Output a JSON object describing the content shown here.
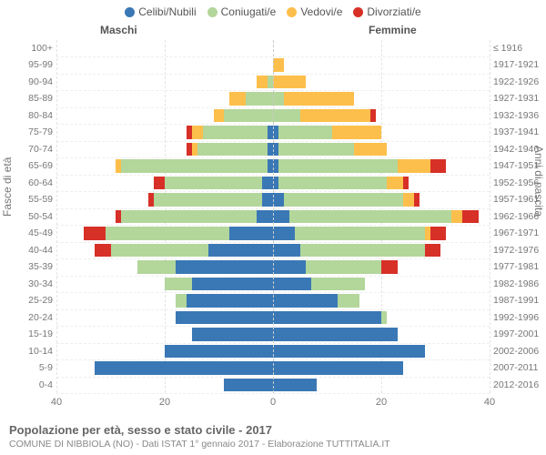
{
  "legend": {
    "items": [
      {
        "label": "Celibi/Nubili",
        "color": "#3a78b5"
      },
      {
        "label": "Coniugati/e",
        "color": "#b3d69b"
      },
      {
        "label": "Vedovi/e",
        "color": "#fdbf4b"
      },
      {
        "label": "Divorziati/e",
        "color": "#d73027"
      }
    ]
  },
  "gender": {
    "left": "Maschi",
    "right": "Femmine"
  },
  "axis": {
    "left_title": "Fasce di età",
    "right_title": "Anni di nascita",
    "xmax": 40,
    "xticks": [
      40,
      20,
      0,
      20,
      40
    ]
  },
  "footer": {
    "title": "Popolazione per età, sesso e stato civile - 2017",
    "subtitle": "COMUNE DI NIBBIOLA (NO) - Dati ISTAT 1° gennaio 2017 - Elaborazione TUTTITALIA.IT"
  },
  "colors": {
    "celibi": "#3a78b5",
    "coniugati": "#b3d69b",
    "vedovi": "#fdbf4b",
    "divorziati": "#d73027",
    "grid": "#e5e5e5",
    "center": "#cccccc",
    "bg": "#ffffff"
  },
  "rows": [
    {
      "age": "0-4",
      "birth": "2012-2016",
      "m": {
        "c": 9,
        "s": 0,
        "v": 0,
        "d": 0
      },
      "f": {
        "c": 8,
        "s": 0,
        "v": 0,
        "d": 0
      }
    },
    {
      "age": "5-9",
      "birth": "2007-2011",
      "m": {
        "c": 33,
        "s": 0,
        "v": 0,
        "d": 0
      },
      "f": {
        "c": 24,
        "s": 0,
        "v": 0,
        "d": 0
      }
    },
    {
      "age": "10-14",
      "birth": "2002-2006",
      "m": {
        "c": 20,
        "s": 0,
        "v": 0,
        "d": 0
      },
      "f": {
        "c": 28,
        "s": 0,
        "v": 0,
        "d": 0
      }
    },
    {
      "age": "15-19",
      "birth": "1997-2001",
      "m": {
        "c": 15,
        "s": 0,
        "v": 0,
        "d": 0
      },
      "f": {
        "c": 23,
        "s": 0,
        "v": 0,
        "d": 0
      }
    },
    {
      "age": "20-24",
      "birth": "1992-1996",
      "m": {
        "c": 18,
        "s": 0,
        "v": 0,
        "d": 0
      },
      "f": {
        "c": 20,
        "s": 1,
        "v": 0,
        "d": 0
      }
    },
    {
      "age": "25-29",
      "birth": "1987-1991",
      "m": {
        "c": 16,
        "s": 2,
        "v": 0,
        "d": 0
      },
      "f": {
        "c": 12,
        "s": 4,
        "v": 0,
        "d": 0
      }
    },
    {
      "age": "30-34",
      "birth": "1982-1986",
      "m": {
        "c": 15,
        "s": 5,
        "v": 0,
        "d": 0
      },
      "f": {
        "c": 7,
        "s": 10,
        "v": 0,
        "d": 0
      }
    },
    {
      "age": "35-39",
      "birth": "1977-1981",
      "m": {
        "c": 18,
        "s": 7,
        "v": 0,
        "d": 0
      },
      "f": {
        "c": 6,
        "s": 14,
        "v": 0,
        "d": 3
      }
    },
    {
      "age": "40-44",
      "birth": "1972-1976",
      "m": {
        "c": 12,
        "s": 18,
        "v": 0,
        "d": 3
      },
      "f": {
        "c": 5,
        "s": 23,
        "v": 0,
        "d": 3
      }
    },
    {
      "age": "45-49",
      "birth": "1967-1971",
      "m": {
        "c": 8,
        "s": 23,
        "v": 0,
        "d": 4
      },
      "f": {
        "c": 4,
        "s": 24,
        "v": 1,
        "d": 3
      }
    },
    {
      "age": "50-54",
      "birth": "1962-1966",
      "m": {
        "c": 3,
        "s": 25,
        "v": 0,
        "d": 1
      },
      "f": {
        "c": 3,
        "s": 30,
        "v": 2,
        "d": 3
      }
    },
    {
      "age": "55-59",
      "birth": "1957-1961",
      "m": {
        "c": 2,
        "s": 20,
        "v": 0,
        "d": 1
      },
      "f": {
        "c": 2,
        "s": 22,
        "v": 2,
        "d": 1
      }
    },
    {
      "age": "60-64",
      "birth": "1952-1956",
      "m": {
        "c": 2,
        "s": 18,
        "v": 0,
        "d": 2
      },
      "f": {
        "c": 1,
        "s": 20,
        "v": 3,
        "d": 1
      }
    },
    {
      "age": "65-69",
      "birth": "1947-1951",
      "m": {
        "c": 1,
        "s": 27,
        "v": 1,
        "d": 0
      },
      "f": {
        "c": 1,
        "s": 22,
        "v": 6,
        "d": 3
      }
    },
    {
      "age": "70-74",
      "birth": "1942-1946",
      "m": {
        "c": 1,
        "s": 13,
        "v": 1,
        "d": 1
      },
      "f": {
        "c": 1,
        "s": 14,
        "v": 6,
        "d": 0
      }
    },
    {
      "age": "75-79",
      "birth": "1937-1941",
      "m": {
        "c": 1,
        "s": 12,
        "v": 2,
        "d": 1
      },
      "f": {
        "c": 1,
        "s": 10,
        "v": 9,
        "d": 0
      }
    },
    {
      "age": "80-84",
      "birth": "1932-1936",
      "m": {
        "c": 0,
        "s": 9,
        "v": 2,
        "d": 0
      },
      "f": {
        "c": 0,
        "s": 5,
        "v": 13,
        "d": 1
      }
    },
    {
      "age": "85-89",
      "birth": "1927-1931",
      "m": {
        "c": 0,
        "s": 5,
        "v": 3,
        "d": 0
      },
      "f": {
        "c": 0,
        "s": 2,
        "v": 13,
        "d": 0
      }
    },
    {
      "age": "90-94",
      "birth": "1922-1926",
      "m": {
        "c": 0,
        "s": 1,
        "v": 2,
        "d": 0
      },
      "f": {
        "c": 0,
        "s": 0,
        "v": 6,
        "d": 0
      }
    },
    {
      "age": "95-99",
      "birth": "1917-1921",
      "m": {
        "c": 0,
        "s": 0,
        "v": 0,
        "d": 0
      },
      "f": {
        "c": 0,
        "s": 0,
        "v": 2,
        "d": 0
      }
    },
    {
      "age": "100+",
      "birth": "≤ 1916",
      "m": {
        "c": 0,
        "s": 0,
        "v": 0,
        "d": 0
      },
      "f": {
        "c": 0,
        "s": 0,
        "v": 0,
        "d": 0
      }
    }
  ]
}
